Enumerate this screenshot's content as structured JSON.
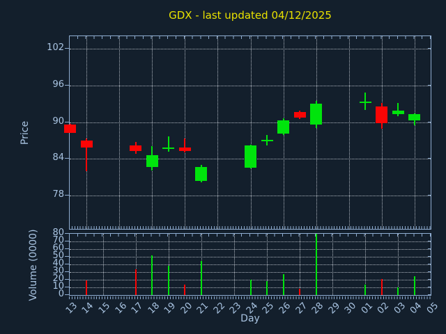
{
  "title": "GDX - last updated 04/12/2025",
  "colors": {
    "background": "#131f2c",
    "frame": "#8fadd1",
    "tick_label": "#a9c4e2",
    "grid": "#ced4dc",
    "up": "#00e40c",
    "down": "#fa0505",
    "title": "#e8e100"
  },
  "price_axis": {
    "label": "Price",
    "ticks": [
      102,
      96,
      90,
      84,
      78
    ]
  },
  "volume_axis": {
    "label": "Volume (0000)",
    "ticks": [
      80,
      70,
      60,
      50,
      40,
      30,
      20,
      10,
      0
    ]
  },
  "x_axis": {
    "label": "Day",
    "days": [
      "13",
      "14",
      "15",
      "16",
      "17",
      "18",
      "19",
      "20",
      "21",
      "22",
      "23",
      "24",
      "25",
      "26",
      "27",
      "28",
      "29",
      "30",
      "01",
      "02",
      "03",
      "04",
      "05"
    ]
  },
  "chart_data": {
    "type": "candlestick",
    "title": "GDX - last updated 04/12/2025",
    "xlabel": "Day",
    "ylabel_price": "Price",
    "ylabel_volume": "Volume (0000)",
    "price_ylim": [
      72.5,
      104.1
    ],
    "volume_ylim": [
      0,
      80
    ],
    "grid": "dotted",
    "price_grid_day_indices": [
      1,
      3,
      5,
      7,
      9,
      11,
      13,
      15,
      17,
      19,
      21
    ],
    "volume_grid_day_indices": [
      2,
      4,
      6,
      8,
      10,
      12,
      14,
      16,
      18,
      20
    ],
    "candles": [
      {
        "day": "13",
        "day_index": 0,
        "open": 89.6,
        "high": 89.7,
        "low": 88.2,
        "close": 88.2,
        "volume": 0,
        "direction": "down"
      },
      {
        "day": "14",
        "day_index": 1,
        "open": 87.0,
        "high": 87.3,
        "low": 82.0,
        "close": 85.9,
        "volume": 19,
        "direction": "down"
      },
      {
        "day": "17",
        "day_index": 4,
        "open": 86.2,
        "high": 86.8,
        "low": 84.8,
        "close": 85.3,
        "volume": 34,
        "direction": "down"
      },
      {
        "day": "18",
        "day_index": 5,
        "open": 82.6,
        "high": 86.1,
        "low": 82.1,
        "close": 84.6,
        "volume": 52,
        "direction": "up"
      },
      {
        "day": "19",
        "day_index": 6,
        "open": 85.6,
        "high": 87.7,
        "low": 85.2,
        "close": 85.8,
        "volume": 38,
        "direction": "up"
      },
      {
        "day": "20",
        "day_index": 7,
        "open": 85.9,
        "high": 87.3,
        "low": 85.1,
        "close": 85.3,
        "volume": 14,
        "direction": "down"
      },
      {
        "day": "21",
        "day_index": 8,
        "open": 80.4,
        "high": 83.0,
        "low": 80.1,
        "close": 82.7,
        "volume": 45,
        "direction": "up"
      },
      {
        "day": "24",
        "day_index": 11,
        "open": 82.5,
        "high": 86.3,
        "low": 82.4,
        "close": 86.2,
        "volume": 20,
        "direction": "up"
      },
      {
        "day": "25",
        "day_index": 12,
        "open": 87.0,
        "high": 87.9,
        "low": 86.2,
        "close": 87.1,
        "volume": 18,
        "direction": "up"
      },
      {
        "day": "26",
        "day_index": 13,
        "open": 88.1,
        "high": 90.6,
        "low": 87.9,
        "close": 90.3,
        "volume": 27,
        "direction": "up"
      },
      {
        "day": "27",
        "day_index": 14,
        "open": 91.7,
        "high": 91.9,
        "low": 90.5,
        "close": 90.7,
        "volume": 8,
        "direction": "down"
      },
      {
        "day": "28",
        "day_index": 15,
        "open": 89.6,
        "high": 93.5,
        "low": 89.0,
        "close": 93.0,
        "volume": 80,
        "direction": "up"
      },
      {
        "day": "01",
        "day_index": 18,
        "open": 93.3,
        "high": 94.9,
        "low": 92.0,
        "close": 93.4,
        "volume": 14,
        "direction": "up"
      },
      {
        "day": "02",
        "day_index": 19,
        "open": 92.6,
        "high": 93.2,
        "low": 88.9,
        "close": 89.8,
        "volume": 21,
        "direction": "down"
      },
      {
        "day": "03",
        "day_index": 20,
        "open": 91.3,
        "high": 93.1,
        "low": 91.0,
        "close": 91.9,
        "volume": 10,
        "direction": "up"
      },
      {
        "day": "04",
        "day_index": 21,
        "open": 90.3,
        "high": 91.4,
        "low": 89.5,
        "close": 91.3,
        "volume": 25,
        "direction": "up"
      }
    ]
  }
}
